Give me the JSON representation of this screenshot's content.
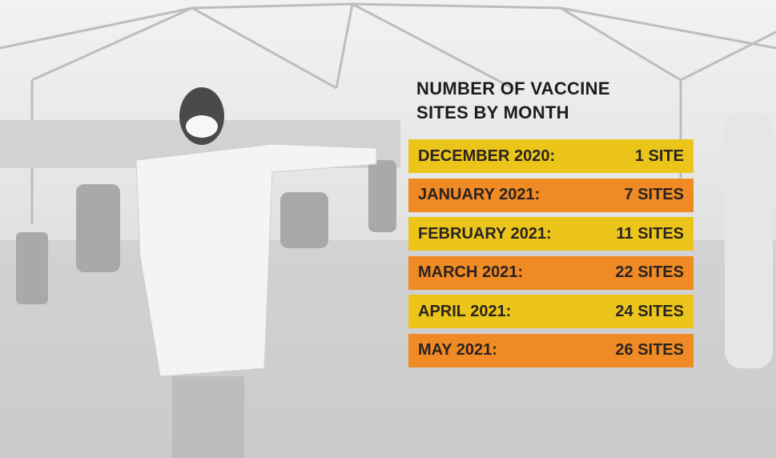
{
  "title": "NUMBER OF VACCINE SITES BY MONTH",
  "rows": [
    {
      "month": "DECEMBER 2020:",
      "sites": "1 SITE"
    },
    {
      "month": "JANUARY 2021:",
      "sites": "7 SITES"
    },
    {
      "month": "FEBRUARY 2021:",
      "sites": "11 SITES"
    },
    {
      "month": "MARCH 2021:",
      "sites": "22 SITES"
    },
    {
      "month": "APRIL 2021:",
      "sites": "24 SITES"
    },
    {
      "month": "MAY 2021:",
      "sites": "26 SITES"
    }
  ]
}
